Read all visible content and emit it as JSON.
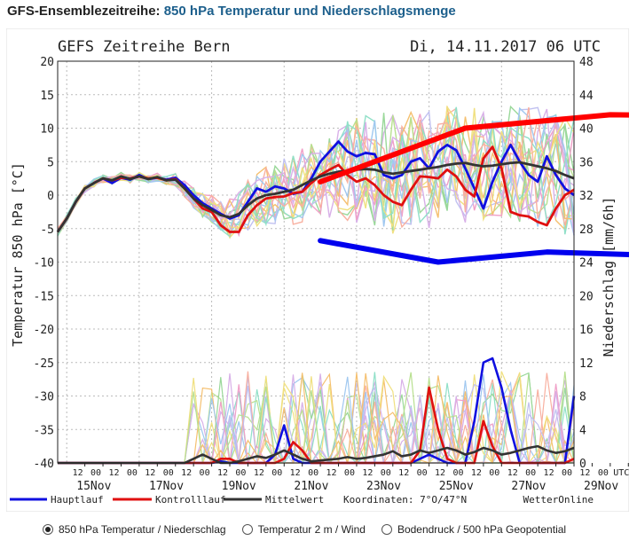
{
  "heading": {
    "prefix": "GFS-Ensemblezeitreihe:",
    "title": "850 hPa Temperatur und Niederschlagsmenge"
  },
  "chart_data": {
    "type": "line",
    "title": "GEFS Zeitreihe Bern",
    "datetime": "Di, 14.11.2017 06 UTC",
    "ylabel": "Temperatur 850 hPa [°C]",
    "y2label": "Niederschlag [mm/6h]",
    "ylim": [
      -40,
      20
    ],
    "y2lim": [
      0,
      48
    ],
    "yticks": [
      "20",
      "15",
      "10",
      "5",
      "0",
      "-5",
      "-10",
      "-15",
      "-20",
      "-25",
      "-30",
      "-35",
      "-40"
    ],
    "y2ticks": [
      "48",
      "44",
      "40",
      "36",
      "32",
      "28",
      "24",
      "20",
      "16",
      "12",
      "8",
      "4",
      "0"
    ],
    "x_hour_labels": [
      "12",
      "00",
      "12",
      "00",
      "12",
      "00",
      "12",
      "00",
      "12",
      "00",
      "12",
      "00",
      "12",
      "00",
      "12",
      "00",
      "12",
      "00",
      "12",
      "00",
      "12",
      "00",
      "12",
      "00",
      "12",
      "00",
      "12",
      "00",
      "12",
      "00",
      "UTC"
    ],
    "x_day_labels": [
      "15Nov",
      "17Nov",
      "19Nov",
      "21Nov",
      "23Nov",
      "25Nov",
      "27Nov",
      "29Nov"
    ],
    "x_step_hours": 6,
    "series": [
      {
        "name": "Hauptlauf",
        "color": "#1010e0",
        "temperature": [
          -5.5,
          -3.5,
          -1,
          1,
          1.8,
          2.5,
          1.8,
          2.6,
          2.3,
          3,
          2.4,
          2.6,
          2.3,
          2.6,
          1.5,
          0,
          -1.2,
          -2,
          -2.8,
          -3.5,
          -3,
          -1,
          1,
          0.5,
          1.3,
          1,
          0.2,
          0.5,
          2.5,
          5,
          6.5,
          8,
          6.5,
          5.8,
          6.3,
          6.1,
          3,
          2.5,
          3,
          5,
          5.5,
          4,
          6.5,
          7.5,
          6.7,
          4,
          1,
          -2,
          2,
          5,
          7.5,
          5,
          3,
          2,
          5.8,
          3,
          1,
          0
        ],
        "precipitation": [
          0,
          0,
          0,
          0,
          0,
          0,
          0,
          0,
          0,
          0,
          0,
          0,
          0,
          0,
          0,
          0,
          0,
          0,
          0.2,
          0,
          0,
          0,
          0,
          0,
          1,
          4.5,
          0.5,
          0,
          0,
          0,
          0,
          0,
          0,
          0,
          0,
          0,
          0,
          0,
          0,
          0,
          0.5,
          1,
          0.5,
          0,
          0,
          0,
          5,
          12,
          12.5,
          9,
          4,
          0,
          0,
          0,
          0,
          0,
          0,
          8
        ]
      },
      {
        "name": "Kontrolllauf",
        "color": "#e01010",
        "temperature": [
          -5.5,
          -3.5,
          -1,
          1,
          1.8,
          2.5,
          2.2,
          2.6,
          2.5,
          2.8,
          2.5,
          2.6,
          2.2,
          2.4,
          1,
          -0.5,
          -2,
          -2.5,
          -4.5,
          -5.5,
          -5.5,
          -3,
          -1.5,
          -0.5,
          -0.3,
          -0.2,
          0.3,
          0.5,
          1.8,
          3,
          3.8,
          4.5,
          3,
          2,
          2.5,
          1.5,
          0,
          -1,
          -1.5,
          0.8,
          2.8,
          2.7,
          2.5,
          3.8,
          2.8,
          0.8,
          -0.2,
          5.5,
          7.2,
          4,
          -2.5,
          -3,
          -3.2,
          -4,
          -4.5,
          -2,
          0,
          0.8
        ],
        "precipitation": [
          0,
          0,
          0,
          0,
          0,
          0,
          0,
          0,
          0,
          0,
          0,
          0,
          0,
          0,
          0,
          0,
          0,
          0,
          0.5,
          0.5,
          0,
          0,
          0,
          0,
          0,
          0.5,
          2.5,
          1.5,
          0,
          0,
          0,
          0,
          0,
          0,
          0,
          0,
          0,
          0,
          0,
          0,
          1.5,
          9,
          4,
          0.5,
          0,
          0,
          0,
          5,
          2,
          0,
          0,
          0,
          0,
          0,
          0,
          0,
          0,
          0.5
        ]
      },
      {
        "name": "Mittelwert",
        "color": "#333333",
        "temperature": [
          -5.5,
          -3.5,
          -1,
          1,
          1.8,
          2.5,
          2.2,
          2.8,
          2.4,
          2.8,
          2.4,
          2.7,
          2.2,
          2.3,
          1,
          -0.5,
          -1.5,
          -2.2,
          -3,
          -3.3,
          -2.8,
          -1.5,
          -0.5,
          0,
          0.2,
          0.5,
          0.8,
          1.5,
          2.2,
          2.8,
          3.2,
          3.5,
          3.6,
          3.8,
          3.9,
          3.8,
          3.4,
          3.2,
          3.4,
          3.6,
          3.8,
          4,
          4.2,
          4.5,
          4.7,
          4.8,
          4.5,
          4.3,
          4.4,
          4.6,
          4.8,
          4.9,
          4.6,
          4.3,
          4,
          3.6,
          3,
          2.5
        ],
        "precipitation": [
          0,
          0,
          0,
          0,
          0,
          0,
          0,
          0,
          0,
          0,
          0,
          0,
          0,
          0,
          0,
          0.5,
          1,
          0.5,
          0,
          0,
          0.2,
          0.5,
          0.8,
          0.6,
          1,
          1.5,
          1,
          0.5,
          0.2,
          0.3,
          0.4,
          0.5,
          0.7,
          0.5,
          0.6,
          0.8,
          1,
          1.4,
          0.8,
          1,
          1.5,
          1.2,
          1.5,
          1.8,
          1.5,
          1,
          1.3,
          1.8,
          1.5,
          1,
          1.2,
          1.5,
          1.8,
          2,
          1.5,
          1.2,
          1.4,
          1.8
        ]
      }
    ],
    "envelope": [
      {
        "name": "Oberer Trend",
        "color": "#ff0000",
        "x_hours": [
          174,
          270,
          366,
          474
        ],
        "temperature": [
          2,
          10,
          12,
          11.8
        ]
      },
      {
        "name": "Unterer Trend",
        "color": "#0000ee",
        "x_hours": [
          174,
          252,
          324,
          396,
          474
        ],
        "temperature": [
          -6.8,
          -10,
          -8.5,
          -9,
          -5.3
        ]
      }
    ],
    "legend": {
      "hauptlauf": "Hauptlauf",
      "kontrolllauf": "Kontrolllauf",
      "mittelwert": "Mittelwert",
      "coords": "Koordinaten: 7°O/47°N",
      "brand": "WetterOnline"
    }
  },
  "radio_options": {
    "opt1": "850 hPa Temperatur / Niederschlag",
    "opt2": "Temperatur 2 m / Wind",
    "opt3": "Bodendruck / 500 hPa Geopotential"
  }
}
